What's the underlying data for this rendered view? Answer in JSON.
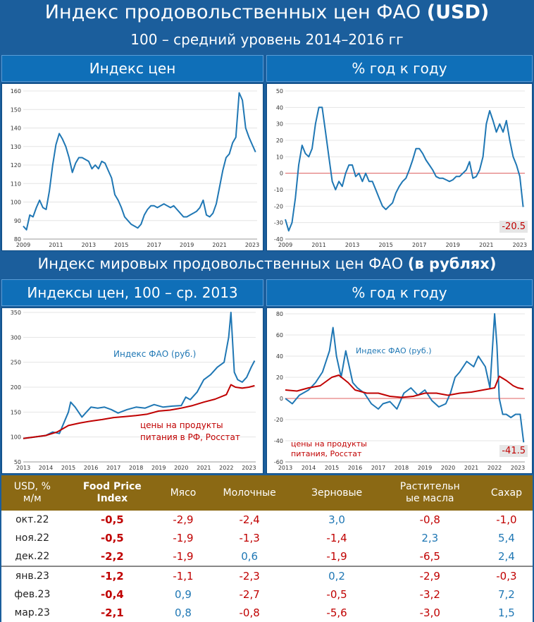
{
  "title": {
    "main": "Индекс продовольственных цен ФАО",
    "main_bold": "(USD)",
    "subtitle": "100 – средний уровень 2014–2016 гг"
  },
  "section1": {
    "left_header": "Индекс цен",
    "right_header": "% год к году",
    "end_label": "-20.5"
  },
  "section2": {
    "title": "Индекс мировых продовольственных цен ФАО",
    "title_bold": "(в рублях)",
    "left_header": "Индексы цен, 100 – ср. 2013",
    "right_header": "% год к году",
    "legend_fao": "Индекс ФАО (руб.)",
    "legend_food_l1": "цены на продукты",
    "legend_food_l2": "питания в РФ, Росстат",
    "legend_food2_l1": "цены на продукты",
    "legend_food2_l2": "питания, Росстат",
    "end_label": "-41.5"
  },
  "colors": {
    "blue": "#1f77b4",
    "red": "#c00000",
    "header": "#8b6914"
  },
  "chart_data": [
    {
      "type": "line",
      "title": "Индекс цен",
      "ylim": [
        80,
        160
      ],
      "yticks": [
        80,
        90,
        100,
        110,
        120,
        130,
        140,
        150,
        160
      ],
      "xticks": [
        "2009",
        "2011",
        "2013",
        "2015",
        "2017",
        "2019",
        "2021",
        "2023"
      ],
      "xlim": [
        2009,
        2023.3
      ],
      "series": [
        {
          "name": "FAO Food Price Index (USD)",
          "x": [
            2009,
            2009.2,
            2009.4,
            2009.6,
            2009.8,
            2010,
            2010.2,
            2010.4,
            2010.6,
            2010.8,
            2011,
            2011.2,
            2011.4,
            2011.6,
            2011.8,
            2012,
            2012.2,
            2012.4,
            2012.6,
            2012.8,
            2013,
            2013.2,
            2013.4,
            2013.6,
            2013.8,
            2014,
            2014.2,
            2014.4,
            2014.6,
            2014.8,
            2015,
            2015.2,
            2015.4,
            2015.6,
            2015.8,
            2016,
            2016.2,
            2016.4,
            2016.6,
            2016.8,
            2017,
            2017.2,
            2017.4,
            2017.6,
            2017.8,
            2018,
            2018.2,
            2018.4,
            2018.6,
            2018.8,
            2019,
            2019.2,
            2019.4,
            2019.6,
            2019.8,
            2020,
            2020.2,
            2020.4,
            2020.6,
            2020.8,
            2021,
            2021.2,
            2021.4,
            2021.6,
            2021.8,
            2022,
            2022.2,
            2022.4,
            2022.6,
            2022.8,
            2023,
            2023.2
          ],
          "y": [
            87,
            85,
            93,
            92,
            97,
            101,
            97,
            96,
            106,
            120,
            131,
            137,
            134,
            130,
            124,
            116,
            121,
            124,
            124,
            123,
            122,
            118,
            120,
            118,
            122,
            121,
            117,
            113,
            104,
            101,
            97,
            92,
            90,
            88,
            87,
            86,
            88,
            93,
            96,
            98,
            98,
            97,
            98,
            99,
            98,
            97,
            98,
            96,
            94,
            92,
            92,
            93,
            94,
            95,
            97,
            101,
            93,
            92,
            94,
            99,
            108,
            117,
            124,
            126,
            132,
            135,
            159,
            155,
            140,
            135,
            131,
            127
          ]
        }
      ]
    },
    {
      "type": "line",
      "title": "% год к году",
      "ylim": [
        -40,
        50
      ],
      "yticks": [
        -40,
        -30,
        -20,
        -10,
        0,
        10,
        20,
        30,
        40,
        50
      ],
      "xticks": [
        "2009",
        "2011",
        "2013",
        "2015",
        "2017",
        "2019",
        "2021",
        "2023"
      ],
      "xlim": [
        2009,
        2023.3
      ],
      "series": [
        {
          "name": "FAO (USD) % y/y",
          "x": [
            2009,
            2009.2,
            2009.4,
            2009.6,
            2009.8,
            2010,
            2010.2,
            2010.4,
            2010.6,
            2010.8,
            2011,
            2011.2,
            2011.4,
            2011.6,
            2011.8,
            2012,
            2012.2,
            2012.4,
            2012.6,
            2012.8,
            2013,
            2013.2,
            2013.4,
            2013.6,
            2013.8,
            2014,
            2014.2,
            2014.4,
            2014.6,
            2014.8,
            2015,
            2015.2,
            2015.4,
            2015.6,
            2015.8,
            2016,
            2016.2,
            2016.4,
            2016.6,
            2016.8,
            2017,
            2017.2,
            2017.4,
            2017.6,
            2017.8,
            2018,
            2018.2,
            2018.4,
            2018.6,
            2018.8,
            2019,
            2019.2,
            2019.4,
            2019.6,
            2019.8,
            2020,
            2020.2,
            2020.4,
            2020.6,
            2020.8,
            2021,
            2021.2,
            2021.4,
            2021.6,
            2021.8,
            2022,
            2022.2,
            2022.4,
            2022.6,
            2022.8,
            2023,
            2023.2
          ],
          "y": [
            -28,
            -35,
            -30,
            -15,
            5,
            17,
            12,
            10,
            15,
            30,
            40,
            40,
            25,
            10,
            -5,
            -10,
            -5,
            -8,
            0,
            5,
            5,
            -2,
            0,
            -5,
            0,
            -5,
            -5,
            -10,
            -15,
            -20,
            -22,
            -20,
            -18,
            -12,
            -8,
            -5,
            -3,
            2,
            8,
            15,
            15,
            12,
            8,
            5,
            2,
            -2,
            -3,
            -3,
            -4,
            -5,
            -4,
            -2,
            -2,
            0,
            2,
            7,
            -3,
            -2,
            2,
            10,
            30,
            38,
            32,
            25,
            30,
            25,
            32,
            20,
            10,
            5,
            -2,
            -20.5
          ]
        }
      ]
    },
    {
      "type": "line",
      "title": "Индексы цен, 100 – ср. 2013",
      "ylim": [
        50,
        350
      ],
      "yticks": [
        50,
        100,
        150,
        200,
        250,
        300,
        350
      ],
      "xticks": [
        "2013",
        "2014",
        "2015",
        "2016",
        "2017",
        "2018",
        "2019",
        "2020",
        "2021",
        "2022",
        "2023"
      ],
      "xlim": [
        2013,
        2023.3
      ],
      "series": [
        {
          "name": "Индекс ФАО (руб.)",
          "x": [
            2013,
            2013.5,
            2014,
            2014.3,
            2014.6,
            2015,
            2015.1,
            2015.3,
            2015.6,
            2015.8,
            2016,
            2016.3,
            2016.6,
            2016.9,
            2017.2,
            2017.6,
            2018,
            2018.4,
            2018.8,
            2019.2,
            2019.6,
            2020,
            2020.2,
            2020.4,
            2020.7,
            2021,
            2021.3,
            2021.6,
            2021.9,
            2022.1,
            2022.2,
            2022.35,
            2022.5,
            2022.7,
            2022.9,
            2023.1,
            2023.25
          ],
          "y": [
            97,
            100,
            103,
            110,
            107,
            150,
            170,
            160,
            140,
            150,
            160,
            158,
            160,
            155,
            148,
            155,
            160,
            158,
            165,
            160,
            162,
            163,
            180,
            175,
            190,
            215,
            225,
            240,
            250,
            300,
            355,
            230,
            215,
            210,
            220,
            240,
            253
          ]
        },
        {
          "name": "цены на продукты питания в РФ, Росстат",
          "x": [
            2013,
            2014,
            2014.5,
            2015,
            2015.5,
            2016,
            2016.5,
            2017,
            2017.5,
            2018,
            2018.5,
            2019,
            2019.5,
            2020,
            2020.5,
            2021,
            2021.5,
            2022,
            2022.2,
            2022.4,
            2022.7,
            2023,
            2023.25
          ],
          "y": [
            97,
            103,
            110,
            123,
            128,
            132,
            135,
            139,
            141,
            143,
            146,
            152,
            154,
            158,
            163,
            170,
            176,
            185,
            205,
            200,
            198,
            200,
            203
          ]
        }
      ]
    },
    {
      "type": "line",
      "title": "% год к году",
      "ylim": [
        -60,
        80
      ],
      "yticks": [
        -60,
        -40,
        -20,
        0,
        20,
        40,
        60,
        80
      ],
      "xticks": [
        "2013",
        "2014",
        "2015",
        "2016",
        "2017",
        "2018",
        "2019",
        "2020",
        "2021",
        "2022",
        "2023"
      ],
      "xlim": [
        2013,
        2023.3
      ],
      "series": [
        {
          "name": "Индекс ФАО (руб.)",
          "x": [
            2013,
            2013.3,
            2013.6,
            2014,
            2014.3,
            2014.6,
            2014.9,
            2015.05,
            2015.2,
            2015.4,
            2015.6,
            2015.75,
            2015.9,
            2016.1,
            2016.4,
            2016.7,
            2017,
            2017.2,
            2017.5,
            2017.8,
            2018.1,
            2018.4,
            2018.7,
            2019,
            2019.3,
            2019.6,
            2019.9,
            2020.1,
            2020.3,
            2020.5,
            2020.8,
            2021.1,
            2021.3,
            2021.6,
            2021.8,
            2022.0,
            2022.1,
            2022.2,
            2022.35,
            2022.5,
            2022.7,
            2022.9,
            2023.1,
            2023.25
          ],
          "y": [
            0,
            -5,
            3,
            8,
            15,
            25,
            45,
            67,
            40,
            20,
            45,
            30,
            15,
            10,
            5,
            -5,
            -10,
            -5,
            -3,
            -10,
            5,
            10,
            3,
            8,
            -2,
            -8,
            -5,
            5,
            20,
            25,
            35,
            30,
            40,
            30,
            10,
            80,
            50,
            0,
            -15,
            -15,
            -18,
            -15,
            -15,
            -41.5
          ]
        },
        {
          "name": "цены на продукты питания, Росстат",
          "x": [
            2013,
            2013.5,
            2014,
            2014.5,
            2015,
            2015.3,
            2015.7,
            2016,
            2016.5,
            2017,
            2017.5,
            2018,
            2018.5,
            2019,
            2019.5,
            2020,
            2020.5,
            2021,
            2021.5,
            2022,
            2022.2,
            2022.5,
            2022.8,
            2023,
            2023.25
          ],
          "y": [
            8,
            7,
            10,
            12,
            20,
            22,
            15,
            8,
            5,
            5,
            2,
            1,
            2,
            5,
            5,
            3,
            5,
            6,
            8,
            10,
            21,
            17,
            12,
            10,
            9
          ]
        }
      ]
    }
  ],
  "table": {
    "headers": [
      "USD, % м/м",
      "Food Price Index",
      "Мясо",
      "Молочные",
      "Зерновые",
      "Растительные масла",
      "Сахар"
    ],
    "header_lines": [
      [
        "USD, %",
        "м/м"
      ],
      [
        "Food Price",
        "Index"
      ],
      [
        "Мясо"
      ],
      [
        "Молочные"
      ],
      [
        "Зерновые"
      ],
      [
        "Растительн",
        "ые масла"
      ],
      [
        "Сахар"
      ]
    ],
    "rows": [
      {
        "month": "окт.22",
        "vals": [
          "-0,5",
          "-2,9",
          "-2,4",
          "3,0",
          "-0,8",
          "-1,0"
        ]
      },
      {
        "month": "ноя.22",
        "vals": [
          "-0,5",
          "-1,9",
          "-1,3",
          "-1,4",
          "2,3",
          "5,4"
        ]
      },
      {
        "month": "дек.22",
        "vals": [
          "-2,2",
          "-1,9",
          "0,6",
          "-1,9",
          "-6,5",
          "2,4"
        ]
      },
      {
        "month": "янв.23",
        "vals": [
          "-1,2",
          "-1,1",
          "-2,3",
          "0,2",
          "-2,9",
          "-0,3"
        ]
      },
      {
        "month": "фев.23",
        "vals": [
          "-0,4",
          "0,9",
          "-2,7",
          "-0,5",
          "-3,2",
          "7,2"
        ]
      },
      {
        "month": "мар.23",
        "vals": [
          "-2,1",
          "0,8",
          "-0,8",
          "-5,6",
          "-3,0",
          "1,5"
        ]
      }
    ]
  }
}
